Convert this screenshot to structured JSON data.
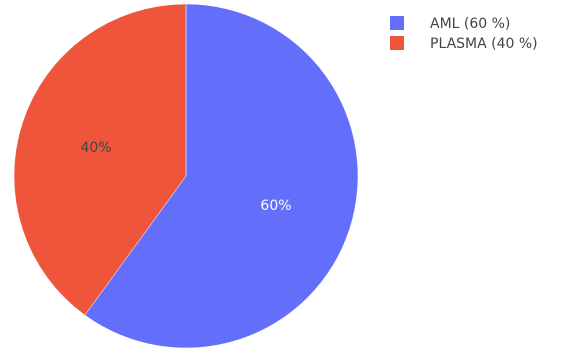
{
  "chart_data": {
    "type": "pie",
    "title": "",
    "slices": [
      {
        "label": "AML (60 %)",
        "value": 60,
        "text": "60%",
        "color": "#636efa"
      },
      {
        "label": "PLASMA (40 %)",
        "value": 40,
        "text": "40%",
        "color": "#ef553b"
      }
    ],
    "legend": {
      "placement": "top-right"
    },
    "start_angle": "12 o'clock",
    "direction": "clockwise",
    "label_colors": {
      "on_blue": "#ffffff",
      "on_red": "#444444"
    },
    "legend_text_color": "#444444"
  }
}
